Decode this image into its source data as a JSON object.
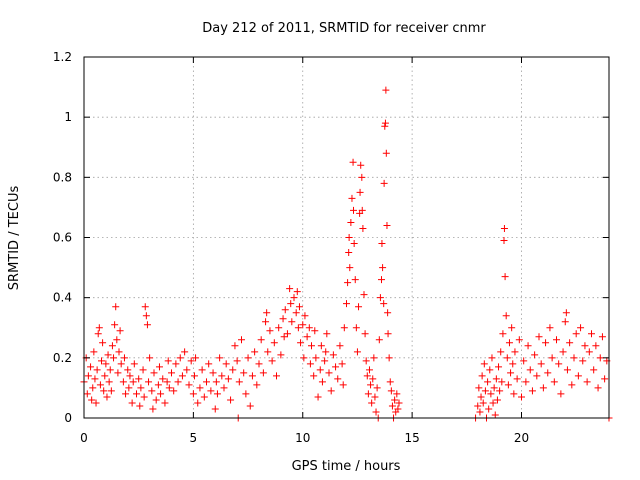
{
  "chart_data": {
    "type": "scatter",
    "title": "Day 212 of 2011, SRMTID for receiver cnmr",
    "xlabel": "GPS time / hours",
    "ylabel": "SRMTID / TECUs",
    "xlim": [
      0,
      24
    ],
    "ylim": [
      0,
      1.2
    ],
    "x_ticks": [
      0,
      5,
      10,
      15,
      20
    ],
    "x_tick_labels": [
      "0",
      "5",
      "10",
      "15",
      "20"
    ],
    "y_ticks": [
      0,
      0.2,
      0.4,
      0.6,
      0.8,
      1,
      1.2
    ],
    "y_tick_labels": [
      "0",
      "0.2",
      "0.4",
      "0.6",
      "0.8",
      "1",
      "1.2"
    ],
    "grid": true,
    "marker": "+",
    "color": "#ff0000",
    "series": [
      {
        "name": "SRMTID",
        "points": [
          [
            0.0,
            0.12
          ],
          [
            0.1,
            0.2
          ],
          [
            0.15,
            0.08
          ],
          [
            0.2,
            0.14
          ],
          [
            0.3,
            0.17
          ],
          [
            0.35,
            0.06
          ],
          [
            0.4,
            0.1
          ],
          [
            0.45,
            0.22
          ],
          [
            0.5,
            0.13
          ],
          [
            0.55,
            0.05
          ],
          [
            0.6,
            0.16
          ],
          [
            0.65,
            0.28
          ],
          [
            0.7,
            0.3
          ],
          [
            0.75,
            0.11
          ],
          [
            0.8,
            0.19
          ],
          [
            0.85,
            0.25
          ],
          [
            0.9,
            0.09
          ],
          [
            0.95,
            0.14
          ],
          [
            1.0,
            0.18
          ],
          [
            1.05,
            0.07
          ],
          [
            1.1,
            0.21
          ],
          [
            1.15,
            0.12
          ],
          [
            1.2,
            0.16
          ],
          [
            1.25,
            0.09
          ],
          [
            1.3,
            0.24
          ],
          [
            1.35,
            0.2
          ],
          [
            1.4,
            0.31
          ],
          [
            1.45,
            0.37
          ],
          [
            1.5,
            0.26
          ],
          [
            1.55,
            0.15
          ],
          [
            1.6,
            0.22
          ],
          [
            1.65,
            0.29
          ],
          [
            1.7,
            0.18
          ],
          [
            1.8,
            0.12
          ],
          [
            1.85,
            0.2
          ],
          [
            1.9,
            0.08
          ],
          [
            2.0,
            0.16
          ],
          [
            2.05,
            0.1
          ],
          [
            2.1,
            0.14
          ],
          [
            2.2,
            0.05
          ],
          [
            2.25,
            0.12
          ],
          [
            2.3,
            0.18
          ],
          [
            2.4,
            0.08
          ],
          [
            2.5,
            0.13
          ],
          [
            2.55,
            0.04
          ],
          [
            2.6,
            0.1
          ],
          [
            2.7,
            0.16
          ],
          [
            2.75,
            0.07
          ],
          [
            2.8,
            0.37
          ],
          [
            2.85,
            0.34
          ],
          [
            2.9,
            0.31
          ],
          [
            2.95,
            0.12
          ],
          [
            3.0,
            0.2
          ],
          [
            3.1,
            0.09
          ],
          [
            3.15,
            0.03
          ],
          [
            3.2,
            0.15
          ],
          [
            3.3,
            0.06
          ],
          [
            3.4,
            0.11
          ],
          [
            3.45,
            0.17
          ],
          [
            3.5,
            0.08
          ],
          [
            3.6,
            0.13
          ],
          [
            3.7,
            0.05
          ],
          [
            3.8,
            0.12
          ],
          [
            3.85,
            0.19
          ],
          [
            3.9,
            0.1
          ],
          [
            4.0,
            0.15
          ],
          [
            4.1,
            0.09
          ],
          [
            4.2,
            0.18
          ],
          [
            4.3,
            0.12
          ],
          [
            4.4,
            0.2
          ],
          [
            4.5,
            0.14
          ],
          [
            4.6,
            0.22
          ],
          [
            4.7,
            0.16
          ],
          [
            4.8,
            0.11
          ],
          [
            4.9,
            0.19
          ],
          [
            5.0,
            0.08
          ],
          [
            5.05,
            0.14
          ],
          [
            5.1,
            0.2
          ],
          [
            5.2,
            0.05
          ],
          [
            5.3,
            0.1
          ],
          [
            5.4,
            0.16
          ],
          [
            5.5,
            0.07
          ],
          [
            5.6,
            0.12
          ],
          [
            5.7,
            0.18
          ],
          [
            5.8,
            0.09
          ],
          [
            5.9,
            0.15
          ],
          [
            6.0,
            0.03
          ],
          [
            6.05,
            0.12
          ],
          [
            6.1,
            0.08
          ],
          [
            6.2,
            0.2
          ],
          [
            6.3,
            0.14
          ],
          [
            6.4,
            0.1
          ],
          [
            6.5,
            0.18
          ],
          [
            6.6,
            0.13
          ],
          [
            6.7,
            0.06
          ],
          [
            6.8,
            0.16
          ],
          [
            6.9,
            0.24
          ],
          [
            7.0,
            0.19
          ],
          [
            7.05,
            0.0
          ],
          [
            7.1,
            0.12
          ],
          [
            7.2,
            0.26
          ],
          [
            7.3,
            0.15
          ],
          [
            7.4,
            0.08
          ],
          [
            7.5,
            0.2
          ],
          [
            7.6,
            0.04
          ],
          [
            7.7,
            0.14
          ],
          [
            7.8,
            0.22
          ],
          [
            7.9,
            0.11
          ],
          [
            8.0,
            0.18
          ],
          [
            8.1,
            0.26
          ],
          [
            8.2,
            0.15
          ],
          [
            8.3,
            0.32
          ],
          [
            8.35,
            0.35
          ],
          [
            8.4,
            0.22
          ],
          [
            8.5,
            0.29
          ],
          [
            8.6,
            0.19
          ],
          [
            8.7,
            0.25
          ],
          [
            8.8,
            0.14
          ],
          [
            8.9,
            0.3
          ],
          [
            9.0,
            0.21
          ],
          [
            9.1,
            0.33
          ],
          [
            9.15,
            0.27
          ],
          [
            9.2,
            0.36
          ],
          [
            9.3,
            0.28
          ],
          [
            9.4,
            0.43
          ],
          [
            9.45,
            0.38
          ],
          [
            9.5,
            0.32
          ],
          [
            9.6,
            0.4
          ],
          [
            9.7,
            0.35
          ],
          [
            9.75,
            0.42
          ],
          [
            9.8,
            0.3
          ],
          [
            9.85,
            0.37
          ],
          [
            9.9,
            0.25
          ],
          [
            10.0,
            0.31
          ],
          [
            10.05,
            0.2
          ],
          [
            10.1,
            0.34
          ],
          [
            10.2,
            0.27
          ],
          [
            10.3,
            0.3
          ],
          [
            10.35,
            0.18
          ],
          [
            10.4,
            0.24
          ],
          [
            10.5,
            0.14
          ],
          [
            10.55,
            0.29
          ],
          [
            10.6,
            0.2
          ],
          [
            10.7,
            0.07
          ],
          [
            10.8,
            0.16
          ],
          [
            10.85,
            0.24
          ],
          [
            10.9,
            0.12
          ],
          [
            11.0,
            0.19
          ],
          [
            11.05,
            0.22
          ],
          [
            11.1,
            0.28
          ],
          [
            11.2,
            0.15
          ],
          [
            11.3,
            0.09
          ],
          [
            11.4,
            0.21
          ],
          [
            11.5,
            0.17
          ],
          [
            11.6,
            0.13
          ],
          [
            11.7,
            0.24
          ],
          [
            11.8,
            0.18
          ],
          [
            11.85,
            0.11
          ],
          [
            11.9,
            0.3
          ],
          [
            12.0,
            0.38
          ],
          [
            12.05,
            0.45
          ],
          [
            12.1,
            0.55
          ],
          [
            12.12,
            0.6
          ],
          [
            12.15,
            0.5
          ],
          [
            12.2,
            0.65
          ],
          [
            12.25,
            0.73
          ],
          [
            12.3,
            0.85
          ],
          [
            12.32,
            0.69
          ],
          [
            12.35,
            0.58
          ],
          [
            12.4,
            0.46
          ],
          [
            12.45,
            0.3
          ],
          [
            12.5,
            0.22
          ],
          [
            12.55,
            0.37
          ],
          [
            12.6,
            0.68
          ],
          [
            12.62,
            0.75
          ],
          [
            12.65,
            0.84
          ],
          [
            12.7,
            0.8
          ],
          [
            12.72,
            0.69
          ],
          [
            12.75,
            0.63
          ],
          [
            12.8,
            0.41
          ],
          [
            12.85,
            0.28
          ],
          [
            12.9,
            0.19
          ],
          [
            12.95,
            0.14
          ],
          [
            13.0,
            0.08
          ],
          [
            13.05,
            0.16
          ],
          [
            13.1,
            0.11
          ],
          [
            13.15,
            0.05
          ],
          [
            13.2,
            0.13
          ],
          [
            13.25,
            0.2
          ],
          [
            13.3,
            0.07
          ],
          [
            13.35,
            0.02
          ],
          [
            13.4,
            0.1
          ],
          [
            13.45,
            0.0
          ],
          [
            13.5,
            0.26
          ],
          [
            13.55,
            0.4
          ],
          [
            13.6,
            0.46
          ],
          [
            13.62,
            0.58
          ],
          [
            13.65,
            0.5
          ],
          [
            13.7,
            0.38
          ],
          [
            13.72,
            0.78
          ],
          [
            13.75,
            0.97
          ],
          [
            13.78,
            0.98
          ],
          [
            13.8,
            1.09
          ],
          [
            13.82,
            0.88
          ],
          [
            13.85,
            0.64
          ],
          [
            13.88,
            0.35
          ],
          [
            13.9,
            0.28
          ],
          [
            13.95,
            0.2
          ],
          [
            14.0,
            0.12
          ],
          [
            14.05,
            0.09
          ],
          [
            14.1,
            0.04
          ],
          [
            14.15,
            0.0
          ],
          [
            14.2,
            0.06
          ],
          [
            14.25,
            0.02
          ],
          [
            14.3,
            0.08
          ],
          [
            14.35,
            0.03
          ],
          [
            14.4,
            0.05
          ],
          [
            17.9,
            0.0
          ],
          [
            18.0,
            0.04
          ],
          [
            18.05,
            0.1
          ],
          [
            18.1,
            0.02
          ],
          [
            18.15,
            0.07
          ],
          [
            18.2,
            0.14
          ],
          [
            18.25,
            0.05
          ],
          [
            18.3,
            0.18
          ],
          [
            18.35,
            0.09
          ],
          [
            18.4,
            0.0
          ],
          [
            18.45,
            0.12
          ],
          [
            18.5,
            0.03
          ],
          [
            18.55,
            0.16
          ],
          [
            18.6,
            0.08
          ],
          [
            18.65,
            0.2
          ],
          [
            18.7,
            0.05
          ],
          [
            18.75,
            0.1
          ],
          [
            18.8,
            0.01
          ],
          [
            18.85,
            0.13
          ],
          [
            18.9,
            0.06
          ],
          [
            18.95,
            0.17
          ],
          [
            19.0,
            0.09
          ],
          [
            19.05,
            0.22
          ],
          [
            19.1,
            0.12
          ],
          [
            19.15,
            0.28
          ],
          [
            19.2,
            0.59
          ],
          [
            19.22,
            0.63
          ],
          [
            19.25,
            0.47
          ],
          [
            19.3,
            0.34
          ],
          [
            19.35,
            0.2
          ],
          [
            19.4,
            0.11
          ],
          [
            19.45,
            0.25
          ],
          [
            19.5,
            0.15
          ],
          [
            19.55,
            0.3
          ],
          [
            19.6,
            0.18
          ],
          [
            19.65,
            0.08
          ],
          [
            19.7,
            0.22
          ],
          [
            19.8,
            0.13
          ],
          [
            19.9,
            0.26
          ],
          [
            20.0,
            0.07
          ],
          [
            20.1,
            0.19
          ],
          [
            20.2,
            0.12
          ],
          [
            20.3,
            0.24
          ],
          [
            20.4,
            0.16
          ],
          [
            20.5,
            0.09
          ],
          [
            20.6,
            0.21
          ],
          [
            20.7,
            0.14
          ],
          [
            20.8,
            0.27
          ],
          [
            20.9,
            0.18
          ],
          [
            21.0,
            0.1
          ],
          [
            21.1,
            0.25
          ],
          [
            21.2,
            0.15
          ],
          [
            21.3,
            0.3
          ],
          [
            21.4,
            0.2
          ],
          [
            21.5,
            0.12
          ],
          [
            21.6,
            0.26
          ],
          [
            21.7,
            0.18
          ],
          [
            21.8,
            0.08
          ],
          [
            21.9,
            0.22
          ],
          [
            22.0,
            0.32
          ],
          [
            22.05,
            0.35
          ],
          [
            22.1,
            0.16
          ],
          [
            22.2,
            0.25
          ],
          [
            22.3,
            0.11
          ],
          [
            22.4,
            0.2
          ],
          [
            22.5,
            0.28
          ],
          [
            22.6,
            0.14
          ],
          [
            22.7,
            0.3
          ],
          [
            22.8,
            0.19
          ],
          [
            22.9,
            0.24
          ],
          [
            23.0,
            0.12
          ],
          [
            23.1,
            0.22
          ],
          [
            23.2,
            0.28
          ],
          [
            23.3,
            0.16
          ],
          [
            23.4,
            0.24
          ],
          [
            23.5,
            0.1
          ],
          [
            23.6,
            0.2
          ],
          [
            23.7,
            0.27
          ],
          [
            23.8,
            0.13
          ],
          [
            23.9,
            0.19
          ],
          [
            24.0,
            0.0
          ]
        ]
      }
    ]
  }
}
